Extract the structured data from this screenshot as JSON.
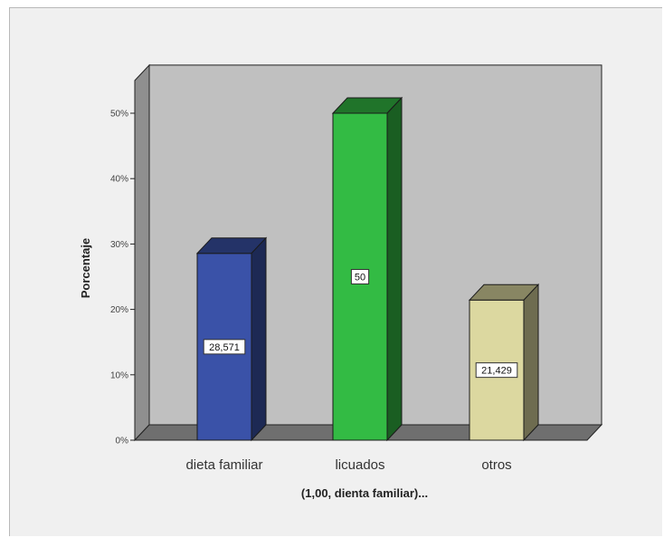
{
  "chart_data": {
    "type": "bar",
    "title": "",
    "xlabel": "(1,00, dienta familiar)...",
    "ylabel": "Porcentaje",
    "categories": [
      "dieta familiar",
      "licuados",
      "otros"
    ],
    "values": [
      28.571,
      50,
      21.429
    ],
    "data_labels": [
      "28,571",
      "50",
      "21,429"
    ],
    "ylim": [
      0,
      55
    ],
    "yticks": [
      0,
      10,
      20,
      30,
      40,
      50
    ],
    "ytick_labels": [
      "0%",
      "10%",
      "20%",
      "30%",
      "40%",
      "50%"
    ],
    "colors": [
      "#3a52a8",
      "#33bb44",
      "#dcd8a0"
    ],
    "grid": false,
    "legend": false,
    "style": "3d"
  }
}
